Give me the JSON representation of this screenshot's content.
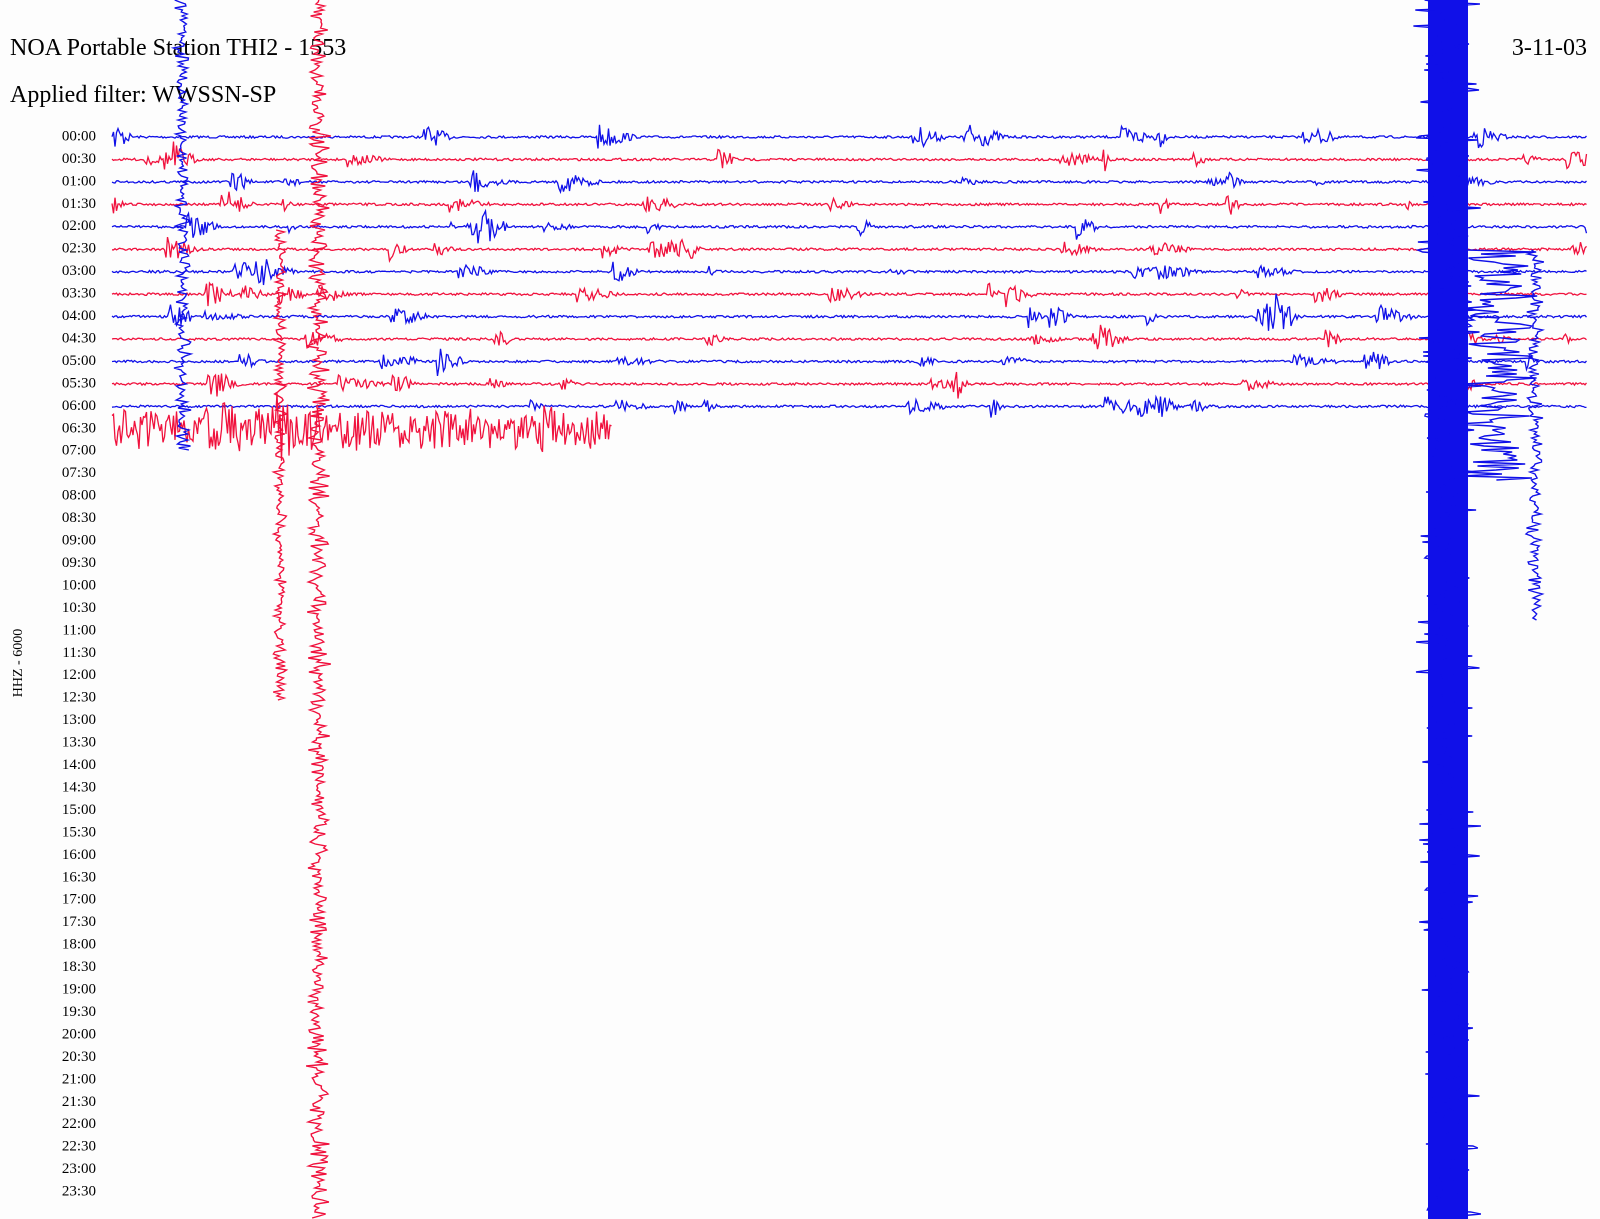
{
  "header": {
    "title": "NOA Portable Station THI2 - 1553",
    "filter": "Applied filter: WWSSN-SP",
    "date": "3-11-03"
  },
  "axis": {
    "label": "HHZ - 6000",
    "times": [
      "00:00",
      "00:30",
      "01:00",
      "01:30",
      "02:00",
      "02:30",
      "03:00",
      "03:30",
      "04:00",
      "04:30",
      "05:00",
      "05:30",
      "06:00",
      "06:30",
      "07:00",
      "07:30",
      "08:00",
      "08:30",
      "09:00",
      "09:30",
      "10:00",
      "10:30",
      "11:00",
      "11:30",
      "12:00",
      "12:30",
      "13:00",
      "13:30",
      "14:00",
      "14:30",
      "15:00",
      "15:30",
      "16:00",
      "16:30",
      "17:00",
      "17:30",
      "18:00",
      "18:30",
      "19:00",
      "19:30",
      "20:00",
      "20:30",
      "21:00",
      "21:30",
      "22:00",
      "22:30",
      "23:00",
      "23:30"
    ]
  }
}
